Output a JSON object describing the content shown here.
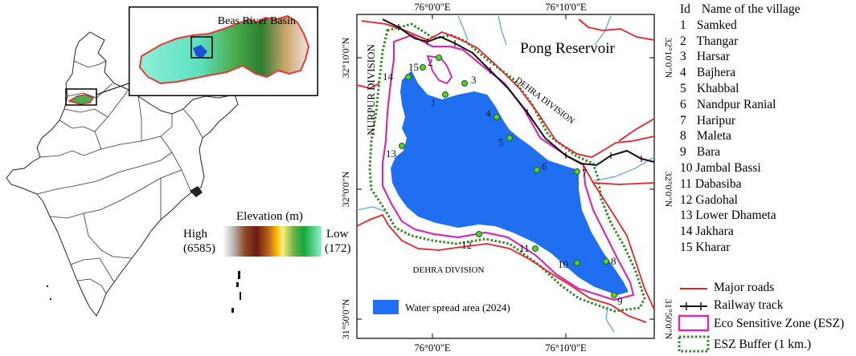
{
  "inset": {
    "title": "Beas River Basin"
  },
  "elevation_legend": {
    "title": "Elevation (m)",
    "high_label": "High",
    "high_value": "(6585)",
    "low_label": "Low",
    "low_value": "(172)"
  },
  "main_map": {
    "reservoir_label": "Pong Reservoir",
    "division_labels": [
      "NURPUR DIVISION",
      "DEHRA DIVISION",
      "DEHRA DIVISION"
    ],
    "lon_ticks": [
      "76°0'0\"E",
      "76°10'0\"E"
    ],
    "lat_ticks": [
      "32°10'0\"N",
      "32°0'0\"N",
      "31°50'0\"N"
    ],
    "water_legend": "Water spread area (2024)",
    "village_markers": [
      "1",
      "2",
      "3",
      "4",
      "5",
      "6",
      "7",
      "8",
      "9",
      "10",
      "11",
      "12",
      "13",
      "14",
      "15"
    ]
  },
  "village_legend": {
    "header_id": "Id",
    "header_name": "Name of the village",
    "villages": [
      {
        "id": "1",
        "name": "Samked"
      },
      {
        "id": "2",
        "name": "Thangar"
      },
      {
        "id": "3",
        "name": "Harsar"
      },
      {
        "id": "4",
        "name": "Bajhera"
      },
      {
        "id": "5",
        "name": "Khabbal"
      },
      {
        "id": "6",
        "name": "Nandpur Ranial"
      },
      {
        "id": "7",
        "name": "Haripur"
      },
      {
        "id": "8",
        "name": "Maleta"
      },
      {
        "id": "9",
        "name": "Bara"
      },
      {
        "id": "10",
        "name": "Jambal Bassi"
      },
      {
        "id": "11",
        "name": "Dabasiba"
      },
      {
        "id": "12",
        "name": "Gadohal"
      },
      {
        "id": "13",
        "name": "Lower Dhameta"
      },
      {
        "id": "14",
        "name": "Jakhara"
      },
      {
        "id": "15",
        "name": "Kharar"
      }
    ]
  },
  "symbol_legend": {
    "roads": "Major roads",
    "railway": "Railway track",
    "esz": "Eco Sensitive Zone (ESZ)",
    "buffer": "ESZ Buffer (1 km.)"
  },
  "colors": {
    "water": "#1f6ff0",
    "road": "#e8202a",
    "esz": "#d12fb0",
    "buffer": "#2b8a1e",
    "marker": "#56d02a",
    "river": "#6fa8e8"
  }
}
